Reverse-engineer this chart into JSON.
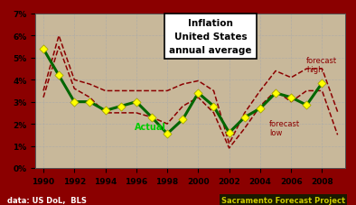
{
  "title_line1": "Inflation",
  "title_line2": "United States",
  "title_line3": "annual average",
  "background_color": "#8B0000",
  "plot_bg_color": "#c8b89a",
  "grid_color": "#aaaaaa",
  "actual_color": "#006600",
  "forecast_high_color": "#8B0000",
  "forecast_low_color": "#8B0000",
  "marker_color": "#FFFF00",
  "actual_years": [
    1990,
    1991,
    1992,
    1993,
    1994,
    1995,
    1996,
    1997,
    1998,
    1999,
    2000,
    2001,
    2002,
    2003,
    2004,
    2005,
    2006,
    2007,
    2008
  ],
  "actual_values": [
    5.4,
    4.2,
    3.0,
    3.0,
    2.6,
    2.8,
    3.0,
    2.3,
    1.55,
    2.2,
    3.4,
    2.8,
    1.6,
    2.3,
    2.7,
    3.4,
    3.2,
    2.85,
    3.85
  ],
  "forecast_high_years": [
    1990,
    1991,
    1992,
    1993,
    1994,
    1995,
    1996,
    1997,
    1998,
    1999,
    2000,
    2001,
    2002,
    2003,
    2004,
    2005,
    2006,
    2007,
    2008,
    2009
  ],
  "forecast_high_values": [
    3.5,
    6.0,
    4.0,
    3.8,
    3.5,
    3.5,
    3.5,
    3.5,
    3.5,
    3.8,
    3.95,
    3.5,
    1.1,
    2.5,
    3.5,
    4.4,
    4.1,
    4.5,
    4.5,
    2.55
  ],
  "forecast_low_years": [
    1990,
    1991,
    1992,
    1993,
    1994,
    1995,
    1996,
    1997,
    1998,
    1999,
    2000,
    2001,
    2002,
    2003,
    2004,
    2005,
    2006,
    2007,
    2008,
    2009
  ],
  "forecast_low_values": [
    3.2,
    5.5,
    3.6,
    3.2,
    2.5,
    2.5,
    2.5,
    2.3,
    2.0,
    2.8,
    3.2,
    2.5,
    0.9,
    1.8,
    2.8,
    3.5,
    3.0,
    3.5,
    3.5,
    1.5
  ],
  "xlabel_ticks": [
    1990,
    1992,
    1994,
    1996,
    1998,
    2000,
    2002,
    2004,
    2006,
    2008
  ],
  "ylim": [
    0,
    7
  ],
  "yticks": [
    0,
    1,
    2,
    3,
    4,
    5,
    6,
    7
  ],
  "ytick_labels": [
    "0%",
    "1%",
    "2%",
    "3%",
    "4%",
    "5%",
    "6%",
    "7%"
  ],
  "annotation_actual": "Actual",
  "annotation_forecast_high": "forecast\nhigh",
  "annotation_forecast_low": "forecast\nlow",
  "footer_left": "data: US DoL,  BLS",
  "footer_right": "Sacramento Forecast Project"
}
